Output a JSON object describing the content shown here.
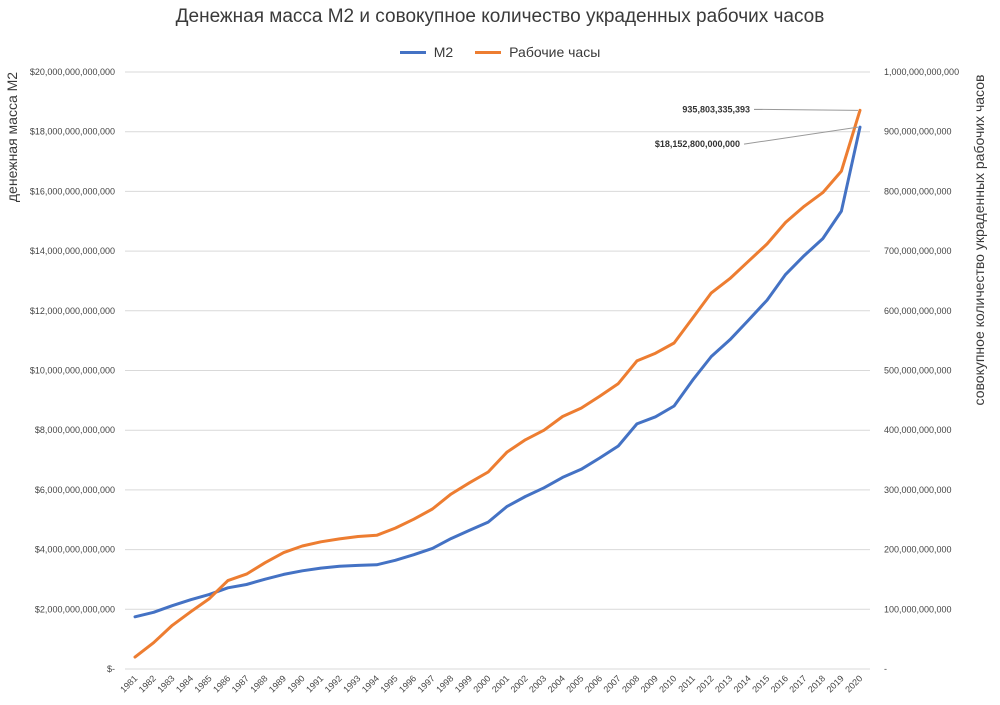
{
  "chart_data": {
    "type": "line",
    "title": "Денежная масса М2 и совокупное количество украденных рабочих часов",
    "ylabel": "денежная масса М2",
    "y2label": "совокупное количество украденных рабочих часов",
    "ylim": [
      0,
      20000000000000
    ],
    "y2lim": [
      0,
      1000000000000
    ],
    "y_ticks": [
      "$-",
      "$2,000,000,000,000",
      "$4,000,000,000,000",
      "$6,000,000,000,000",
      "$8,000,000,000,000",
      "$10,000,000,000,000",
      "$12,000,000,000,000",
      "$14,000,000,000,000",
      "$16,000,000,000,000",
      "$18,000,000,000,000",
      "$20,000,000,000,000"
    ],
    "y2_ticks": [
      "-",
      "100,000,000,000",
      "200,000,000,000",
      "300,000,000,000",
      "400,000,000,000",
      "500,000,000,000",
      "600,000,000,000",
      "700,000,000,000",
      "800,000,000,000",
      "900,000,000,000",
      "1,000,000,000,000"
    ],
    "categories": [
      "1981",
      "1982",
      "1983",
      "1984",
      "1985",
      "1986",
      "1987",
      "1988",
      "1989",
      "1990",
      "1991",
      "1992",
      "1993",
      "1994",
      "1995",
      "1996",
      "1997",
      "1998",
      "1999",
      "2000",
      "2001",
      "2002",
      "2003",
      "2004",
      "2005",
      "2006",
      "2007",
      "2008",
      "2009",
      "2010",
      "2011",
      "2012",
      "2013",
      "2014",
      "2015",
      "2016",
      "2017",
      "2018",
      "2019",
      "2020"
    ],
    "series": [
      {
        "name": "М2",
        "axis": "left",
        "color": "#4472c4",
        "values": [
          1750000000000,
          1900000000000,
          2120000000000,
          2320000000000,
          2500000000000,
          2720000000000,
          2830000000000,
          3010000000000,
          3170000000000,
          3290000000000,
          3380000000000,
          3440000000000,
          3470000000000,
          3490000000000,
          3640000000000,
          3830000000000,
          4040000000000,
          4370000000000,
          4650000000000,
          4920000000000,
          5440000000000,
          5780000000000,
          6070000000000,
          6420000000000,
          6690000000000,
          7070000000000,
          7470000000000,
          8210000000000,
          8450000000000,
          8810000000000,
          9680000000000,
          10470000000000,
          11030000000000,
          11690000000000,
          12360000000000,
          13220000000000,
          13850000000000,
          14420000000000,
          15340000000000,
          18152800000000
        ]
      },
      {
        "name": "Рабочие часы",
        "axis": "right",
        "color": "#ed7d31",
        "values": [
          20000000000,
          44000000000,
          73000000000,
          96000000000,
          118000000000,
          148000000000,
          159000000000,
          178000000000,
          195000000000,
          206000000000,
          213000000000,
          218000000000,
          222000000000,
          224000000000,
          236000000000,
          251000000000,
          268000000000,
          293000000000,
          312000000000,
          330000000000,
          363000000000,
          384000000000,
          400000000000,
          423000000000,
          437000000000,
          457000000000,
          478000000000,
          516000000000,
          529000000000,
          546000000000,
          588000000000,
          630000000000,
          654000000000,
          683000000000,
          712000000000,
          748000000000,
          775000000000,
          798000000000,
          834000000000,
          935803335393
        ]
      }
    ],
    "annotations": [
      {
        "text": "935,803,335,393",
        "series": 1,
        "index": 39
      },
      {
        "text": "$18,152,800,000,000",
        "series": 0,
        "index": 39
      }
    ],
    "grid": true,
    "legend": "top"
  }
}
